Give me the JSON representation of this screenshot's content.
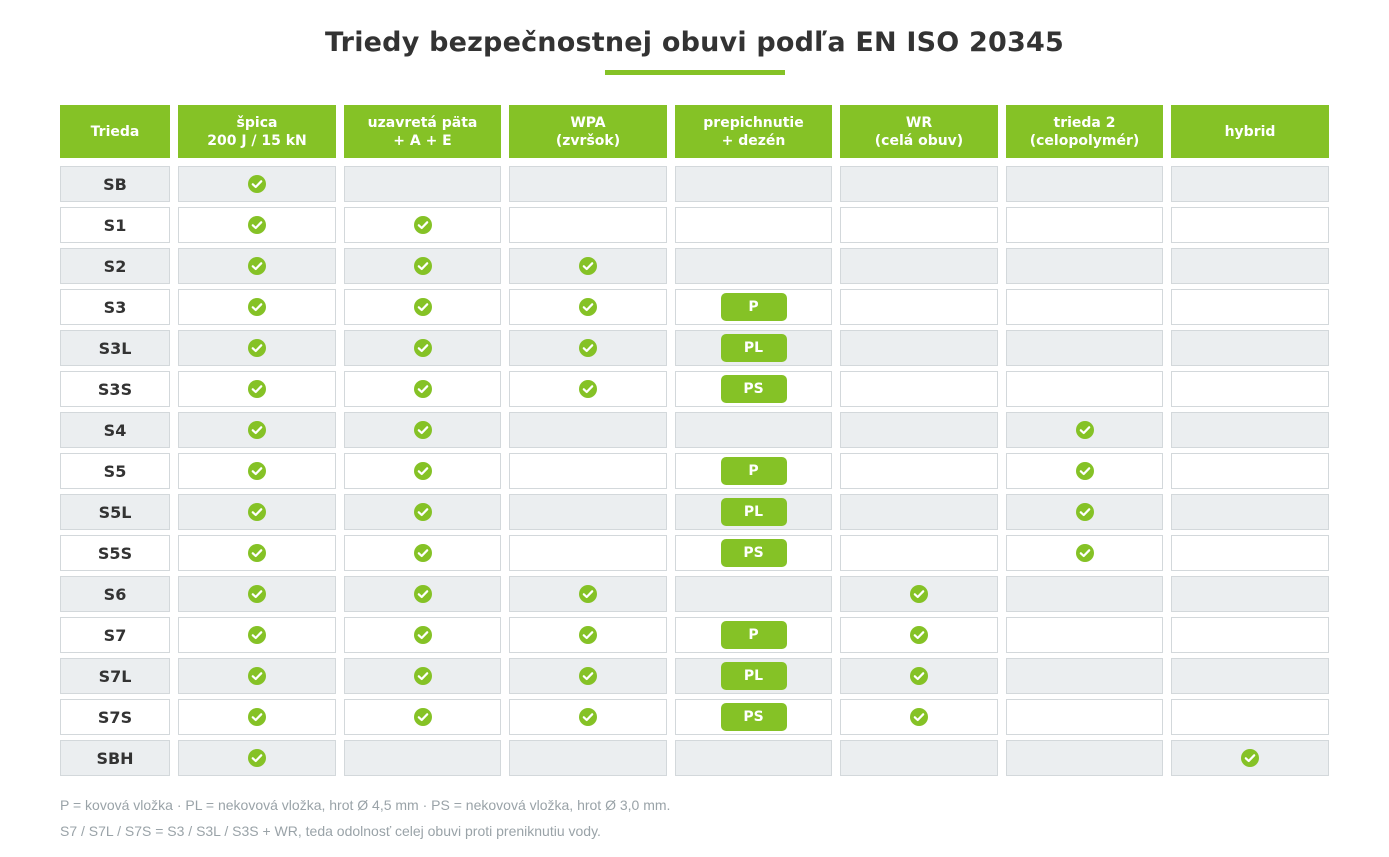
{
  "title": "Triedy bezpečnostnej obuvi podľa EN ISO 20345",
  "colors": {
    "accent": "#85c226",
    "text": "#333333",
    "row_alt": "#ebeef0",
    "note": "#9aa3a8"
  },
  "headers": [
    [
      "Trieda"
    ],
    [
      "špica",
      "200 J / 15 kN"
    ],
    [
      "uzavretá päta",
      "+ A + E"
    ],
    [
      "WPA",
      "(zvršok)"
    ],
    [
      "prepichnutie",
      "+ dezén"
    ],
    [
      "WR",
      "(celá obuv)"
    ],
    [
      "trieda 2",
      "(celopolymér)"
    ],
    [
      "hybrid"
    ]
  ],
  "rows": [
    {
      "label": "SB",
      "cells": [
        "check",
        "",
        "",
        "",
        "",
        "",
        ""
      ]
    },
    {
      "label": "S1",
      "cells": [
        "check",
        "check",
        "",
        "",
        "",
        "",
        ""
      ]
    },
    {
      "label": "S2",
      "cells": [
        "check",
        "check",
        "check",
        "",
        "",
        "",
        ""
      ]
    },
    {
      "label": "S3",
      "cells": [
        "check",
        "check",
        "check",
        "P",
        "",
        "",
        ""
      ]
    },
    {
      "label": "S3L",
      "cells": [
        "check",
        "check",
        "check",
        "PL",
        "",
        "",
        ""
      ]
    },
    {
      "label": "S3S",
      "cells": [
        "check",
        "check",
        "check",
        "PS",
        "",
        "",
        ""
      ]
    },
    {
      "label": "S4",
      "cells": [
        "check",
        "check",
        "",
        "",
        "",
        "check",
        ""
      ]
    },
    {
      "label": "S5",
      "cells": [
        "check",
        "check",
        "",
        "P",
        "",
        "check",
        ""
      ]
    },
    {
      "label": "S5L",
      "cells": [
        "check",
        "check",
        "",
        "PL",
        "",
        "check",
        ""
      ]
    },
    {
      "label": "S5S",
      "cells": [
        "check",
        "check",
        "",
        "PS",
        "",
        "check",
        ""
      ]
    },
    {
      "label": "S6",
      "cells": [
        "check",
        "check",
        "check",
        "",
        "check",
        "",
        ""
      ]
    },
    {
      "label": "S7",
      "cells": [
        "check",
        "check",
        "check",
        "P",
        "check",
        "",
        ""
      ]
    },
    {
      "label": "S7L",
      "cells": [
        "check",
        "check",
        "check",
        "PL",
        "check",
        "",
        ""
      ]
    },
    {
      "label": "S7S",
      "cells": [
        "check",
        "check",
        "check",
        "PS",
        "check",
        "",
        ""
      ]
    },
    {
      "label": "SBH",
      "cells": [
        "check",
        "",
        "",
        "",
        "",
        "",
        "check"
      ]
    }
  ],
  "check_icon": "check-circle-icon",
  "notes": [
    "P = kovová vložka · PL = nekovová vložka, hrot Ø 4,5 mm · PS = nekovová vložka, hrot Ø 3,0 mm.",
    "S7 / S7L / S7S = S3 / S3L / S3S + WR, teda odolnosť celej obuvi proti preniknutiu vody."
  ]
}
